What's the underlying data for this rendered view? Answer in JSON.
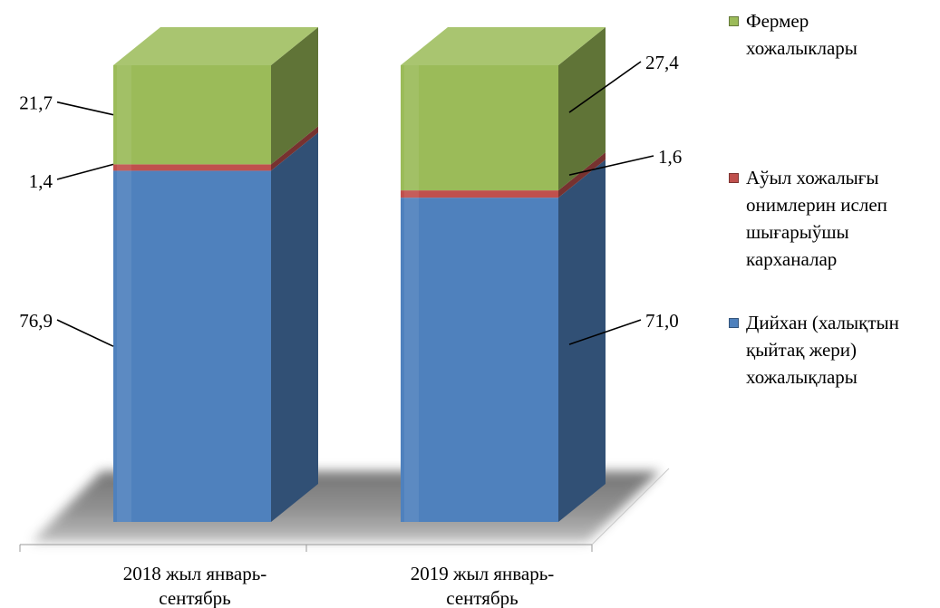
{
  "chart_data": {
    "type": "bar",
    "stacked": true,
    "three_d": true,
    "categories": [
      "2018 жыл январь-сентябрь",
      "2019 жыл январь-сентябрь"
    ],
    "category_lines": [
      [
        "2018 жыл январь-",
        "сентябрь"
      ],
      [
        "2019 жыл январь-",
        "сентябрь"
      ]
    ],
    "series": [
      {
        "name": "Дийхан (халықтын қыйтақ жери) хожалықлары",
        "legend_lines": [
          "Дийхан (халықтын",
          "қыйтақ жери)",
          "хожалықлары"
        ],
        "values": [
          76.9,
          71.0
        ],
        "labels": [
          "76,9",
          "71,0"
        ],
        "color": "#4f81bd"
      },
      {
        "name": "Аўыл хожалығы онимлерин ислеп шығарыўшы карханалар",
        "legend_lines": [
          "Аўыл хожалығы",
          "онимлерин ислеп",
          "шығарыўшы",
          "карханалар"
        ],
        "values": [
          1.4,
          1.6
        ],
        "labels": [
          "1,4",
          "1,6"
        ],
        "color": "#c0504d"
      },
      {
        "name": "Фермер хожалыклары",
        "legend_lines": [
          "Фермер",
          "хожалыклары"
        ],
        "values": [
          21.7,
          27.4
        ],
        "labels": [
          "21,7",
          "27,4"
        ],
        "color": "#9bbb59"
      }
    ],
    "ylim": [
      0,
      100
    ],
    "legend_position": "right",
    "grid": false
  }
}
